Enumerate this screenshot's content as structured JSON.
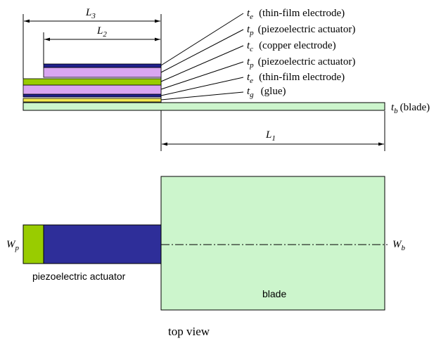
{
  "side_view": {
    "dims": {
      "L3": {
        "main": "L",
        "sub": "3"
      },
      "L2": {
        "main": "L",
        "sub": "2"
      },
      "L1": {
        "main": "L",
        "sub": "1"
      }
    },
    "layers": [
      {
        "sym": "t",
        "sub": "e",
        "desc": "(thin-film electrode)"
      },
      {
        "sym": "t",
        "sub": "p",
        "desc": "(piezoelectric actuator)"
      },
      {
        "sym": "t",
        "sub": "c",
        "desc": "(copper electrode)"
      },
      {
        "sym": "t",
        "sub": "p",
        "desc": "(piezoelectric actuator)"
      },
      {
        "sym": "t",
        "sub": "e",
        "desc": "(thin-film electrode)"
      },
      {
        "sym": "t",
        "sub": "g",
        "desc": "(glue)"
      }
    ],
    "blade_label": {
      "sym": "t",
      "sub": "b",
      "desc": "(blade)"
    }
  },
  "top_view": {
    "wp": {
      "main": "W",
      "sub": "p"
    },
    "wb": {
      "main": "W",
      "sub": "b"
    },
    "actuator_label": "piezoelectric actuator",
    "blade_label": "blade",
    "caption": "top view"
  },
  "colors": {
    "blade": "#ccf5cc",
    "piezo": "#d9a6f2",
    "copper": "#99cc00",
    "electrode": "#1f1f8c",
    "glue": "#f2e84d",
    "actuator_top": "#2e2e99"
  }
}
